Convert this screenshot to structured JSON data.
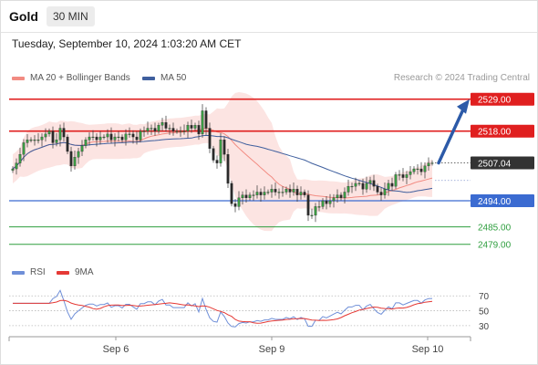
{
  "header": {
    "symbol": "Gold",
    "timeframe": "30 MIN"
  },
  "datetime": "Tuesday, September 10, 2024 1:03:20 AM CET",
  "legend": {
    "ma20": {
      "label": "MA 20 + Bollinger Bands",
      "color": "#f28b82"
    },
    "ma50": {
      "label": "MA 50",
      "color": "#3f5f9e"
    }
  },
  "copyright": "Research © 2024 Trading Central",
  "rsi_legend": {
    "rsi": {
      "label": "RSI",
      "color": "#6f8fd8"
    },
    "ma9": {
      "label": "9MA",
      "color": "#e53935"
    }
  },
  "colors": {
    "resistance": "#e01f1f",
    "pivot": "#3b6bd1",
    "support": "#2e9e3e",
    "arrow": "#2c5aa8",
    "last_price": "#333333"
  },
  "chart_data": {
    "type": "candlestick",
    "x_ticks": [
      "Sep 6",
      "Sep 9",
      "Sep 10"
    ],
    "price": {
      "last": 2507.04,
      "last_label": "2507.04"
    },
    "levels": [
      {
        "value": 2529.0,
        "label": "2529.00",
        "kind": "resistance"
      },
      {
        "value": 2518.0,
        "label": "2518.00",
        "kind": "resistance"
      },
      {
        "value": 2494.0,
        "label": "2494.00",
        "kind": "pivot"
      },
      {
        "value": 2485.0,
        "label": "2485.00",
        "kind": "support"
      },
      {
        "value": 2479.0,
        "label": "2479.00",
        "kind": "support"
      }
    ],
    "arrow": {
      "from": 2507.04,
      "to": 2529.0,
      "direction": "up"
    },
    "closes": [
      2505.0,
      2507.0,
      2510.0,
      2514.0,
      2515.0,
      2515.0,
      2515.0,
      2515.0,
      2516.0,
      2517.0,
      2518.0,
      2514.0,
      2515.0,
      2519.0,
      2516.0,
      2511.0,
      2506.0,
      2509.0,
      2511.0,
      2513.0,
      2515.0,
      2516.0,
      2516.0,
      2515.0,
      2516.0,
      2516.0,
      2517.0,
      2515.0,
      2516.0,
      2516.0,
      2515.0,
      2517.0,
      2517.0,
      2516.0,
      2515.0,
      2518.0,
      2518.0,
      2519.0,
      2519.0,
      2518.0,
      2520.0,
      2521.0,
      2519.0,
      2519.0,
      2518.0,
      2518.0,
      2518.0,
      2518.0,
      2520.0,
      2519.0,
      2520.0,
      2517.0,
      2525.0,
      2519.0,
      2512.0,
      2508.0,
      2507.0,
      2515.0,
      2510.0,
      2500.0,
      2493.0,
      2492.0,
      2495.0,
      2496.0,
      2495.0,
      2496.0,
      2496.0,
      2497.0,
      2496.0,
      2497.0,
      2497.0,
      2498.0,
      2497.0,
      2497.0,
      2497.0,
      2498.0,
      2497.0,
      2498.0,
      2496.0,
      2497.0,
      2496.0,
      2489.0,
      2489.0,
      2492.0,
      2492.0,
      2494.0,
      2493.0,
      2494.0,
      2495.0,
      2496.0,
      2495.0,
      2497.0,
      2499.0,
      2499.0,
      2500.0,
      2500.0,
      2498.0,
      2500.0,
      2501.0,
      2499.0,
      2497.0,
      2496.0,
      2498.0,
      2500.0,
      2499.0,
      2503.0,
      2503.0,
      2502.0,
      2503.0,
      2504.0,
      2505.0,
      2505.0,
      2504.0,
      2506.0,
      2507.0,
      2507.04
    ],
    "rsi": {
      "levels": [
        70,
        50,
        30
      ],
      "range": [
        20,
        85
      ]
    }
  }
}
